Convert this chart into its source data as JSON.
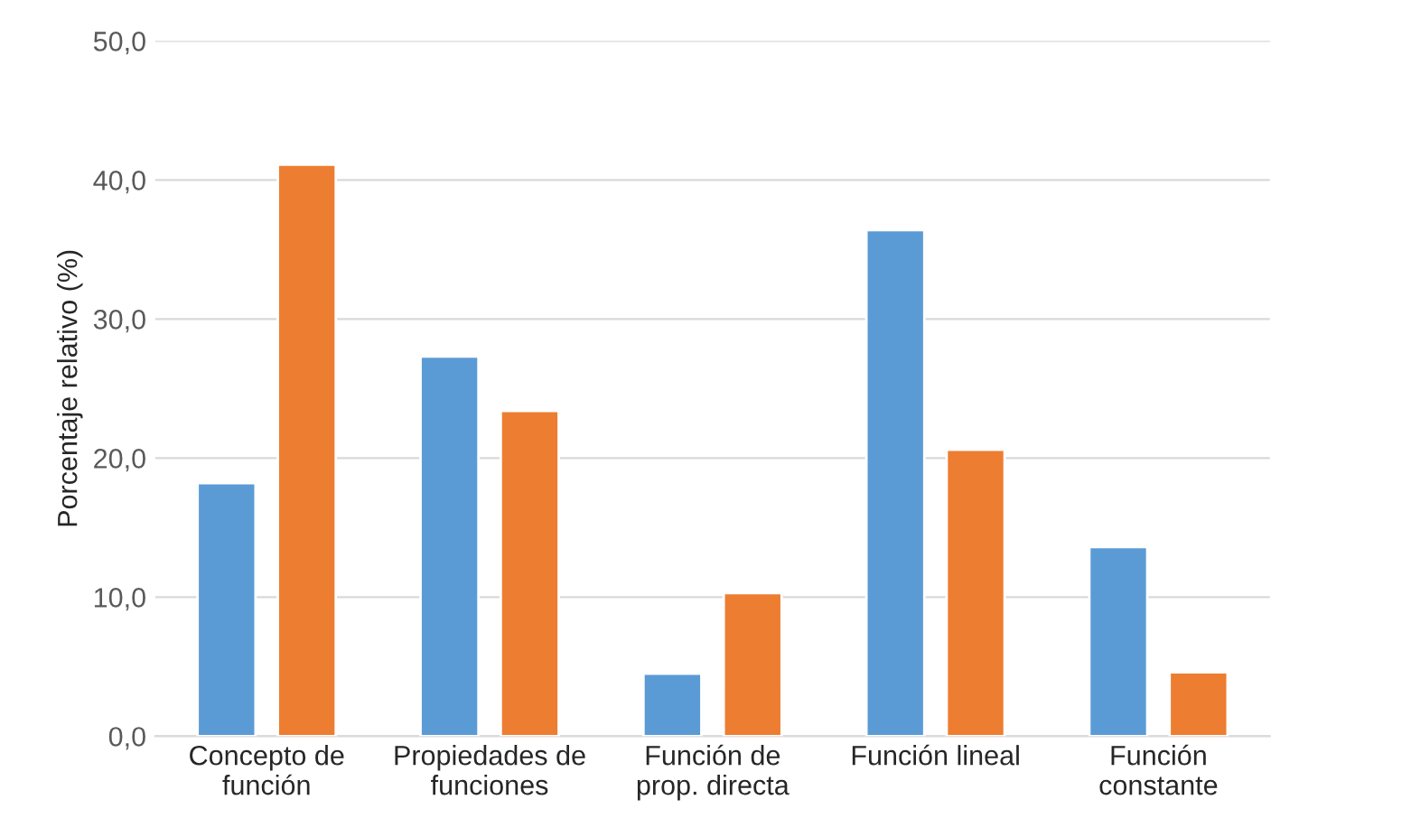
{
  "chart_data": {
    "type": "bar",
    "categories": [
      "Concepto de\nfunción",
      "Propiedades de\nfunciones",
      "Función de\nprop. directa",
      "Función lineal",
      "Función\nconstante"
    ],
    "series": [
      {
        "color": "#5b9bd5",
        "values": [
          18.2,
          27.3,
          4.5,
          36.4,
          13.6
        ]
      },
      {
        "color": "#ed7d31",
        "values": [
          41.1,
          23.4,
          10.3,
          20.6,
          4.6
        ]
      }
    ],
    "ylabel": "Porcentaje relativo (%)",
    "ylim": [
      0,
      50
    ],
    "yticks": [
      {
        "value": 0,
        "label": "0,0"
      },
      {
        "value": 10,
        "label": "10,0"
      },
      {
        "value": 20,
        "label": "20,0"
      },
      {
        "value": 30,
        "label": "30,0"
      },
      {
        "value": 40,
        "label": "40,0"
      },
      {
        "value": 50,
        "label": "50,0"
      }
    ],
    "grid": "y"
  }
}
